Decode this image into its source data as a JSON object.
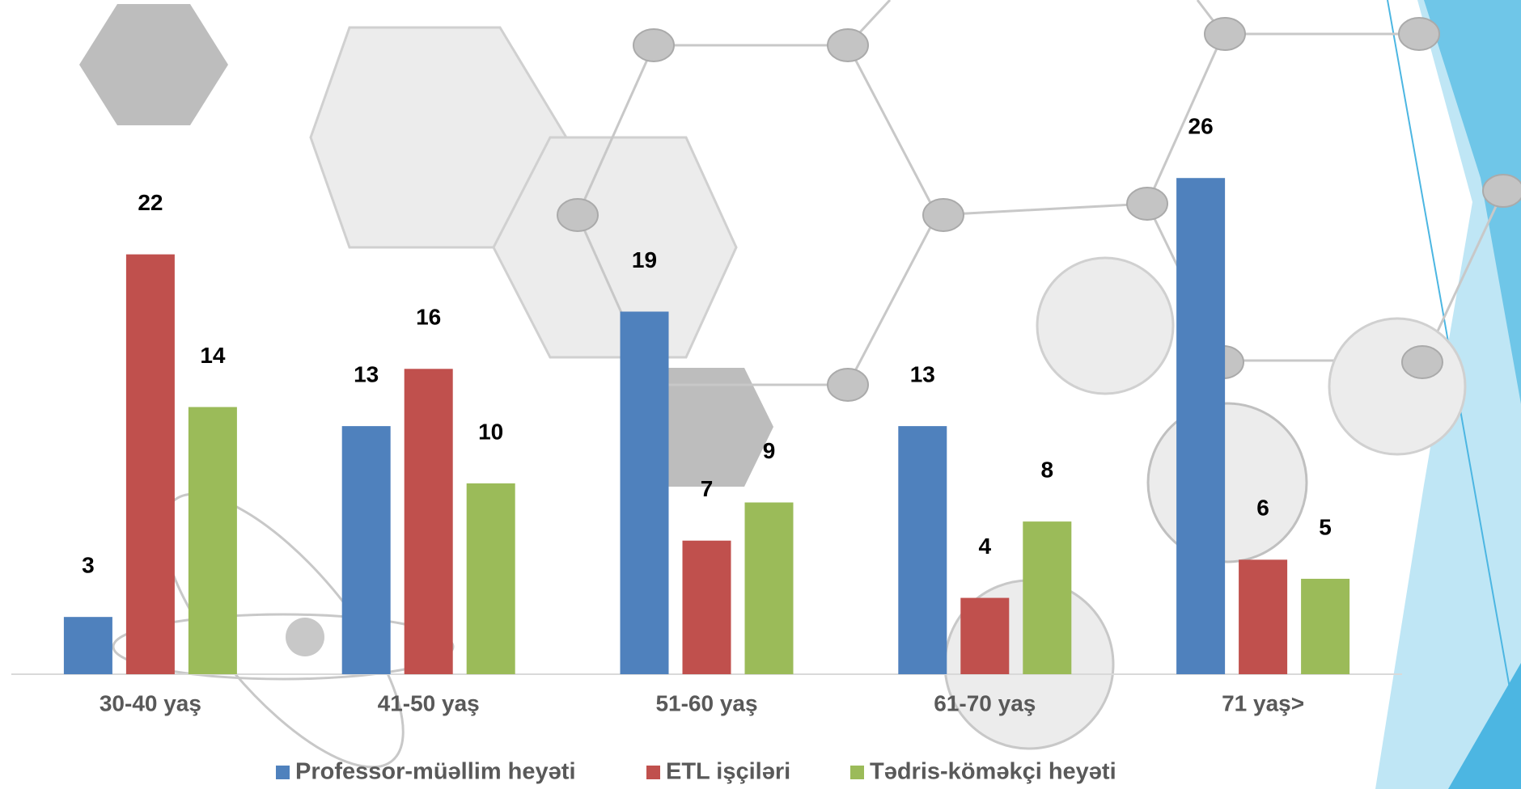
{
  "chart_data": {
    "type": "bar",
    "categories": [
      "30-40 yaş",
      "41-50 yaş",
      "51-60 yaş",
      "61-70 yaş",
      "71 yaş>"
    ],
    "series": [
      {
        "name": "Professor-müəllim heyəti",
        "color": "#4f81bd",
        "values": [
          3,
          13,
          19,
          13,
          26
        ]
      },
      {
        "name": "ETL işçiləri",
        "color": "#c0504d",
        "values": [
          22,
          16,
          7,
          4,
          6
        ]
      },
      {
        "name": "Tədris-köməkçi heyəti",
        "color": "#9bbb59",
        "values": [
          14,
          10,
          9,
          8,
          5
        ]
      }
    ],
    "ylim": [
      0,
      28
    ],
    "legend": "bottom"
  }
}
